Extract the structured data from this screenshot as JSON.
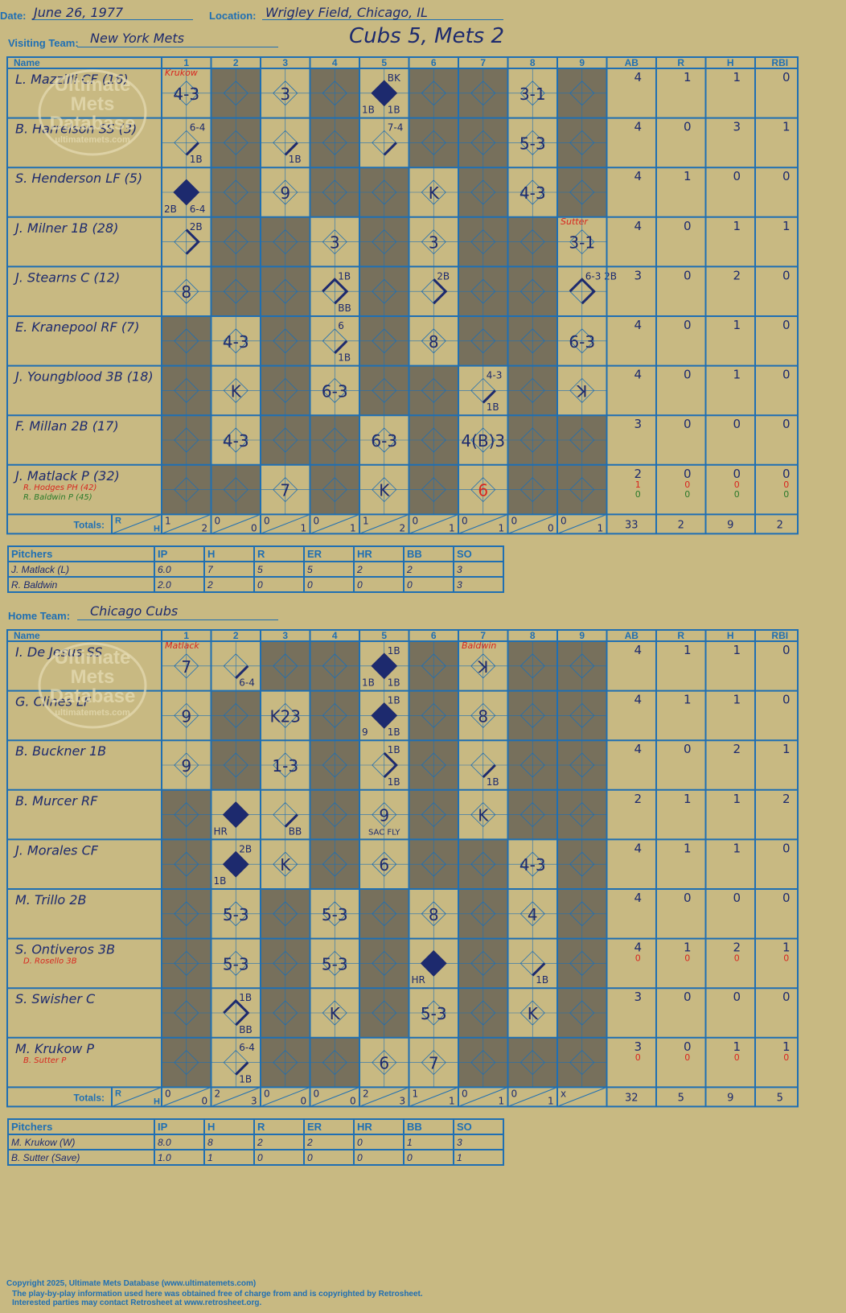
{
  "header": {
    "date_label": "Date:",
    "date": "June 26, 1977",
    "location_label": "Location:",
    "location": "Wrigley Field, Chicago, IL",
    "visiting_label": "Visiting Team:",
    "visiting": "New York Mets",
    "result": "Cubs 5, Mets 2",
    "home_label": "Home Team:",
    "home": "Chicago Cubs"
  },
  "colors": {
    "blue": "#1f6fb3",
    "ink": "#1d2a6e",
    "tan": "#c8b982",
    "gray": "#77705c",
    "red": "#d8261f",
    "green": "#2a7a2a"
  },
  "columns": {
    "name": "Name",
    "innings": [
      "1",
      "2",
      "3",
      "4",
      "5",
      "6",
      "7",
      "8",
      "9"
    ],
    "stats": [
      "AB",
      "R",
      "H",
      "RBI"
    ],
    "totals": "Totals:",
    "r": "R",
    "h": "H"
  },
  "watermark": [
    "Ultimate",
    "Mets",
    "Database",
    "ultimatemets.com"
  ],
  "visitors": {
    "rows": [
      {
        "name": "L. Mazzilli CF (16)",
        "sub": [],
        "stats": [
          [
            "4",
            "1",
            "1",
            "0"
          ]
        ],
        "cells": [
          {
            "t": "4-3",
            "note": "Krukow"
          },
          {
            "gray": true
          },
          {
            "t": "3"
          },
          {
            "gray": true
          },
          {
            "bases": 4,
            "fill": true,
            "nt": "BK",
            "nbl": "1B",
            "nbr": "1B"
          },
          {
            "gray": true
          },
          {
            "gray": true
          },
          {
            "t": "3-1"
          },
          {
            "gray": true
          }
        ]
      },
      {
        "name": "B. Harrelson SS (3)",
        "sub": [],
        "stats": [
          [
            "4",
            "0",
            "3",
            "1"
          ]
        ],
        "cells": [
          {
            "bases": 1,
            "nt": "6-4",
            "nbr": "1B"
          },
          {
            "gray": true
          },
          {
            "bases": 1,
            "nbr": "1B"
          },
          {
            "gray": true
          },
          {
            "bases": 1,
            "nt": "7-4"
          },
          {
            "gray": true
          },
          {
            "gray": true
          },
          {
            "t": "5-3"
          },
          {
            "gray": true
          }
        ]
      },
      {
        "name": "S. Henderson LF (5)",
        "sub": [],
        "stats": [
          [
            "4",
            "1",
            "0",
            "0"
          ]
        ],
        "cells": [
          {
            "bases": 4,
            "fill": true,
            "nbl": "2B",
            "nbr": "6-4"
          },
          {
            "gray": true
          },
          {
            "t": "9"
          },
          {
            "gray": true
          },
          {
            "gray": true
          },
          {
            "t": "K"
          },
          {
            "gray": true
          },
          {
            "t": "4-3"
          },
          {
            "gray": true
          }
        ]
      },
      {
        "name": "J. Milner 1B (28)",
        "sub": [],
        "stats": [
          [
            "4",
            "0",
            "1",
            "1"
          ]
        ],
        "cells": [
          {
            "bases": 2,
            "nt": "2B"
          },
          {
            "gray": true
          },
          {
            "gray": true
          },
          {
            "t": "3"
          },
          {
            "gray": true
          },
          {
            "t": "3"
          },
          {
            "gray": true
          },
          {
            "gray": true
          },
          {
            "t": "3-1",
            "note": "Sutter"
          }
        ]
      },
      {
        "name": "J. Stearns C (12)",
        "sub": [],
        "stats": [
          [
            "3",
            "0",
            "2",
            "0"
          ]
        ],
        "cells": [
          {
            "t": "8"
          },
          {
            "gray": true
          },
          {
            "gray": true
          },
          {
            "bases": 3,
            "nt": "1B",
            "nbr": "BB"
          },
          {
            "gray": true
          },
          {
            "bases": 2,
            "nt": "2B"
          },
          {
            "gray": true
          },
          {
            "gray": true
          },
          {
            "bases": 3,
            "nt": "6-3 2B"
          }
        ]
      },
      {
        "name": "E. Kranepool RF (7)",
        "sub": [],
        "stats": [
          [
            "4",
            "0",
            "1",
            "0"
          ]
        ],
        "cells": [
          {
            "gray": true
          },
          {
            "t": "4-3"
          },
          {
            "gray": true
          },
          {
            "bases": 1,
            "nt": "6",
            "nbr": "1B"
          },
          {
            "gray": true
          },
          {
            "t": "8"
          },
          {
            "gray": true
          },
          {
            "gray": true
          },
          {
            "t": "6-3"
          }
        ]
      },
      {
        "name": "J. Youngblood 3B (18)",
        "sub": [],
        "stats": [
          [
            "4",
            "0",
            "1",
            "0"
          ]
        ],
        "cells": [
          {
            "gray": true
          },
          {
            "t": "K"
          },
          {
            "gray": true
          },
          {
            "t": "6-3"
          },
          {
            "gray": true
          },
          {
            "gray": true
          },
          {
            "bases": 1,
            "nt": "4-3",
            "nbr": "1B"
          },
          {
            "gray": true
          },
          {
            "t": "ꓘ"
          }
        ]
      },
      {
        "name": "F. Millan 2B (17)",
        "sub": [],
        "stats": [
          [
            "3",
            "0",
            "0",
            "0"
          ]
        ],
        "cells": [
          {
            "gray": true
          },
          {
            "t": "4-3"
          },
          {
            "gray": true
          },
          {
            "gray": true
          },
          {
            "t": "6-3"
          },
          {
            "gray": true
          },
          {
            "t": "4(B)3"
          },
          {
            "gray": true
          },
          {
            "gray": true
          }
        ]
      },
      {
        "name": "J. Matlack P (32)",
        "sub": [
          {
            "n": "R. Hodges PH (42)",
            "c": "red"
          },
          {
            "n": "R. Baldwin P (45)",
            "c": "green"
          }
        ],
        "stats": [
          [
            "2",
            "0",
            "0",
            "0"
          ],
          [
            "1",
            "0",
            "0",
            "0"
          ],
          [
            "0",
            "0",
            "0",
            "0"
          ]
        ],
        "cells": [
          {
            "gray": true
          },
          {
            "gray": true
          },
          {
            "t": "7"
          },
          {
            "gray": true
          },
          {
            "t": "K"
          },
          {
            "gray": true
          },
          {
            "t": "6",
            "red": true
          },
          {
            "gray": true
          },
          {
            "gray": true
          }
        ]
      }
    ],
    "totals": [
      [
        "1",
        "2"
      ],
      [
        "0",
        "0"
      ],
      [
        "0",
        "1"
      ],
      [
        "0",
        "1"
      ],
      [
        "1",
        "2"
      ],
      [
        "0",
        "1"
      ],
      [
        "0",
        "1"
      ],
      [
        "0",
        "0"
      ],
      [
        "0",
        "1"
      ]
    ],
    "total_stats": [
      "33",
      "2",
      "9",
      "2"
    ],
    "pitchers": {
      "headers": [
        "Pitchers",
        "IP",
        "H",
        "R",
        "ER",
        "HR",
        "BB",
        "SO"
      ],
      "rows": [
        [
          "J. Matlack (L)",
          "6.0",
          "7",
          "5",
          "5",
          "2",
          "2",
          "3"
        ],
        [
          "R. Baldwin",
          "2.0",
          "2",
          "0",
          "0",
          "0",
          "0",
          "3"
        ]
      ]
    }
  },
  "home_team": {
    "rows": [
      {
        "name": "I. De Jesus SS",
        "sub": [],
        "stats": [
          [
            "4",
            "1",
            "1",
            "0"
          ]
        ],
        "cells": [
          {
            "t": "7",
            "note": "Matlack"
          },
          {
            "bases": 1,
            "nbr": "6-4"
          },
          {
            "gray": true
          },
          {
            "gray": true
          },
          {
            "bases": 4,
            "fill": true,
            "nt": "1B",
            "nbl": "1B",
            "nbr": "1B"
          },
          {
            "gray": true
          },
          {
            "t": "ꓘ",
            "note": "Baldwin"
          },
          {
            "gray": true
          },
          {
            "gray": true
          }
        ]
      },
      {
        "name": "G. Clines LF",
        "sub": [],
        "stats": [
          [
            "4",
            "1",
            "1",
            "0"
          ]
        ],
        "cells": [
          {
            "t": "9"
          },
          {
            "gray": true
          },
          {
            "t": "K23"
          },
          {
            "gray": true
          },
          {
            "bases": 4,
            "fill": true,
            "nt": "1B",
            "nbl": "9",
            "nbr": "1B"
          },
          {
            "gray": true
          },
          {
            "t": "8"
          },
          {
            "gray": true
          },
          {
            "gray": true
          }
        ]
      },
      {
        "name": "B. Buckner 1B",
        "sub": [],
        "stats": [
          [
            "4",
            "0",
            "2",
            "1"
          ]
        ],
        "cells": [
          {
            "t": "9"
          },
          {
            "gray": true
          },
          {
            "t": "1-3"
          },
          {
            "gray": true
          },
          {
            "bases": 2,
            "nt": "1B",
            "nbr": "1B"
          },
          {
            "gray": true
          },
          {
            "bases": 1,
            "nbr": "1B"
          },
          {
            "gray": true
          },
          {
            "gray": true
          }
        ]
      },
      {
        "name": "B. Murcer RF",
        "sub": [],
        "stats": [
          [
            "2",
            "1",
            "1",
            "2"
          ]
        ],
        "cells": [
          {
            "gray": true
          },
          {
            "bases": 4,
            "fill": true,
            "nbl": "HR"
          },
          {
            "bases": 1,
            "nbr": "BB"
          },
          {
            "gray": true
          },
          {
            "t": "9",
            "nb": "SAC FLY"
          },
          {
            "gray": true
          },
          {
            "t": "K"
          },
          {
            "gray": true
          },
          {
            "gray": true
          }
        ]
      },
      {
        "name": "J. Morales CF",
        "sub": [],
        "stats": [
          [
            "4",
            "1",
            "1",
            "0"
          ]
        ],
        "cells": [
          {
            "gray": true
          },
          {
            "bases": 4,
            "fill": true,
            "nt": "2B",
            "nbl": "1B"
          },
          {
            "t": "K"
          },
          {
            "gray": true
          },
          {
            "t": "6"
          },
          {
            "gray": true
          },
          {
            "gray": true
          },
          {
            "t": "4-3"
          },
          {
            "gray": true
          }
        ]
      },
      {
        "name": "M. Trillo 2B",
        "sub": [],
        "stats": [
          [
            "4",
            "0",
            "0",
            "0"
          ]
        ],
        "cells": [
          {
            "gray": true
          },
          {
            "t": "5-3"
          },
          {
            "gray": true
          },
          {
            "t": "5-3"
          },
          {
            "gray": true
          },
          {
            "t": "8"
          },
          {
            "gray": true
          },
          {
            "t": "4"
          },
          {
            "gray": true
          }
        ]
      },
      {
        "name": "S. Ontiveros 3B",
        "sub": [
          {
            "n": "D. Rosello 3B",
            "c": "red"
          }
        ],
        "stats": [
          [
            "4",
            "1",
            "2",
            "1"
          ],
          [
            "0",
            "0",
            "0",
            "0"
          ]
        ],
        "cells": [
          {
            "gray": true
          },
          {
            "t": "5-3"
          },
          {
            "gray": true
          },
          {
            "t": "5-3"
          },
          {
            "gray": true
          },
          {
            "bases": 4,
            "fill": true,
            "nbl": "HR"
          },
          {
            "gray": true
          },
          {
            "bases": 1,
            "nbr": "1B"
          },
          {
            "gray": true
          }
        ]
      },
      {
        "name": "S. Swisher C",
        "sub": [],
        "stats": [
          [
            "3",
            "0",
            "0",
            "0"
          ]
        ],
        "cells": [
          {
            "gray": true
          },
          {
            "bases": 3,
            "nt": "1B",
            "nbr": "BB"
          },
          {
            "gray": true
          },
          {
            "t": "K"
          },
          {
            "gray": true
          },
          {
            "t": "5-3"
          },
          {
            "gray": true
          },
          {
            "t": "K"
          },
          {
            "gray": true
          }
        ]
      },
      {
        "name": "M. Krukow P",
        "sub": [
          {
            "n": "B. Sutter P",
            "c": "red"
          }
        ],
        "stats": [
          [
            "3",
            "0",
            "1",
            "1"
          ],
          [
            "0",
            "0",
            "0",
            "0"
          ]
        ],
        "cells": [
          {
            "gray": true
          },
          {
            "bases": 1,
            "nt": "6-4",
            "nbr": "1B"
          },
          {
            "gray": true
          },
          {
            "gray": true
          },
          {
            "t": "6"
          },
          {
            "t": "7"
          },
          {
            "gray": true
          },
          {
            "gray": true
          },
          {
            "gray": true
          }
        ]
      }
    ],
    "totals": [
      [
        "0",
        "0"
      ],
      [
        "2",
        "3"
      ],
      [
        "0",
        "0"
      ],
      [
        "0",
        "0"
      ],
      [
        "2",
        "3"
      ],
      [
        "1",
        "1"
      ],
      [
        "0",
        "1"
      ],
      [
        "0",
        "1"
      ],
      [
        "x",
        ""
      ]
    ],
    "total_stats": [
      "32",
      "5",
      "9",
      "5"
    ],
    "pitchers": {
      "headers": [
        "Pitchers",
        "IP",
        "H",
        "R",
        "ER",
        "HR",
        "BB",
        "SO"
      ],
      "rows": [
        [
          "M. Krukow (W)",
          "8.0",
          "8",
          "2",
          "2",
          "0",
          "1",
          "3"
        ],
        [
          "B. Sutter (Save)",
          "1.0",
          "1",
          "0",
          "0",
          "0",
          "0",
          "1"
        ]
      ]
    }
  },
  "footer": [
    "Copyright 2025, Ultimate Mets Database (www.ultimatemets.com)",
    "The play-by-play information used here was obtained free of charge from and is copyrighted by Retrosheet.",
    "Interested parties may contact Retrosheet at www.retrosheet.org."
  ]
}
